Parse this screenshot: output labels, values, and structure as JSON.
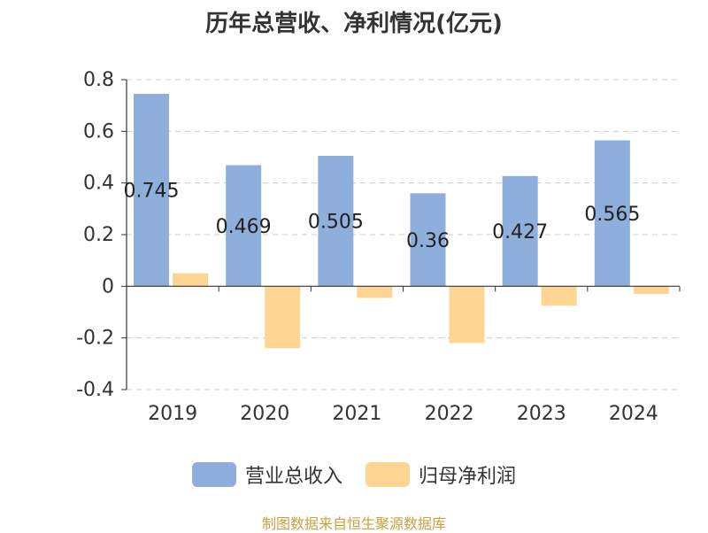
{
  "chart_data": {
    "type": "bar",
    "title": "历年总营收、净利情况(亿元)",
    "categories": [
      "2019",
      "2020",
      "2021",
      "2022",
      "2023",
      "2024"
    ],
    "series": [
      {
        "name": "营业总收入",
        "color": "#8eaedb",
        "values": [
          0.745,
          0.469,
          0.505,
          0.36,
          0.427,
          0.565
        ],
        "labels": [
          "0.745",
          "0.469",
          "0.505",
          "0.36",
          "0.427",
          "0.565"
        ]
      },
      {
        "name": "归母净利润",
        "color": "#fed593",
        "values": [
          0.05,
          -0.24,
          -0.045,
          -0.22,
          -0.075,
          -0.03
        ]
      }
    ],
    "yticks": [
      "0.8",
      "0.6",
      "0.4",
      "0.2",
      "0",
      "-0.2",
      "-0.4"
    ],
    "ylim": [
      -0.4,
      0.8
    ],
    "grid": true,
    "legend": "bottom"
  },
  "footer": "制图数据来自恒生聚源数据库"
}
